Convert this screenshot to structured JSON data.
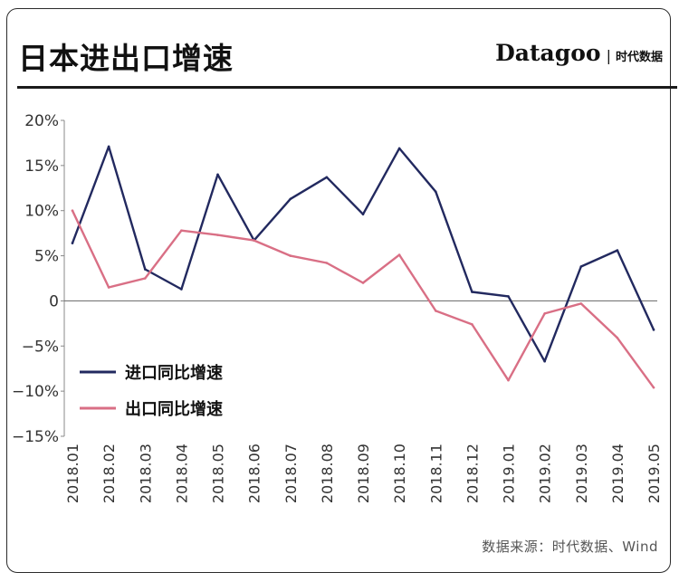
{
  "header": {
    "title": "日本进出口增速",
    "brand_name": "Datagoo",
    "brand_sep": "|",
    "brand_sub": "时代数据"
  },
  "footer": {
    "source": "数据来源：时代数据、Wind"
  },
  "colors": {
    "import": "#22295f",
    "export": "#d96f85",
    "axis": "#888888",
    "zero": "#666666",
    "text": "#333333"
  },
  "chart_data": {
    "type": "line",
    "title": "日本进出口增速",
    "xlabel": "",
    "ylabel": "",
    "ylim": [
      -15,
      20
    ],
    "yticks": [
      20,
      15,
      10,
      5,
      0,
      -5,
      -10,
      -15
    ],
    "ytick_labels": [
      "20%",
      "15%",
      "10%",
      "5%",
      "0",
      "−5%",
      "−10%",
      "−15%"
    ],
    "categories": [
      "2018.01",
      "2018.02",
      "2018.03",
      "2018.04",
      "2018.05",
      "2018.06",
      "2018.07",
      "2018.08",
      "2018.09",
      "2018.10",
      "2018.11",
      "2018.12",
      "2019.01",
      "2019.02",
      "2019.03",
      "2019.04",
      "2019.05"
    ],
    "series": [
      {
        "name": "进口同比增速",
        "color": "#22295f",
        "values": [
          6.4,
          17.1,
          3.5,
          1.3,
          14.0,
          6.7,
          11.3,
          13.7,
          9.6,
          16.9,
          12.1,
          1.0,
          0.5,
          -6.7,
          3.8,
          5.6,
          -3.2
        ]
      },
      {
        "name": "出口同比增速",
        "color": "#d96f85",
        "values": [
          10.0,
          1.5,
          2.5,
          7.8,
          7.3,
          6.7,
          5.0,
          4.2,
          2.0,
          5.1,
          -1.1,
          -2.6,
          -8.8,
          -1.4,
          -0.3,
          -4.1,
          -9.6
        ]
      }
    ],
    "legend": "center-left",
    "grid": false
  }
}
